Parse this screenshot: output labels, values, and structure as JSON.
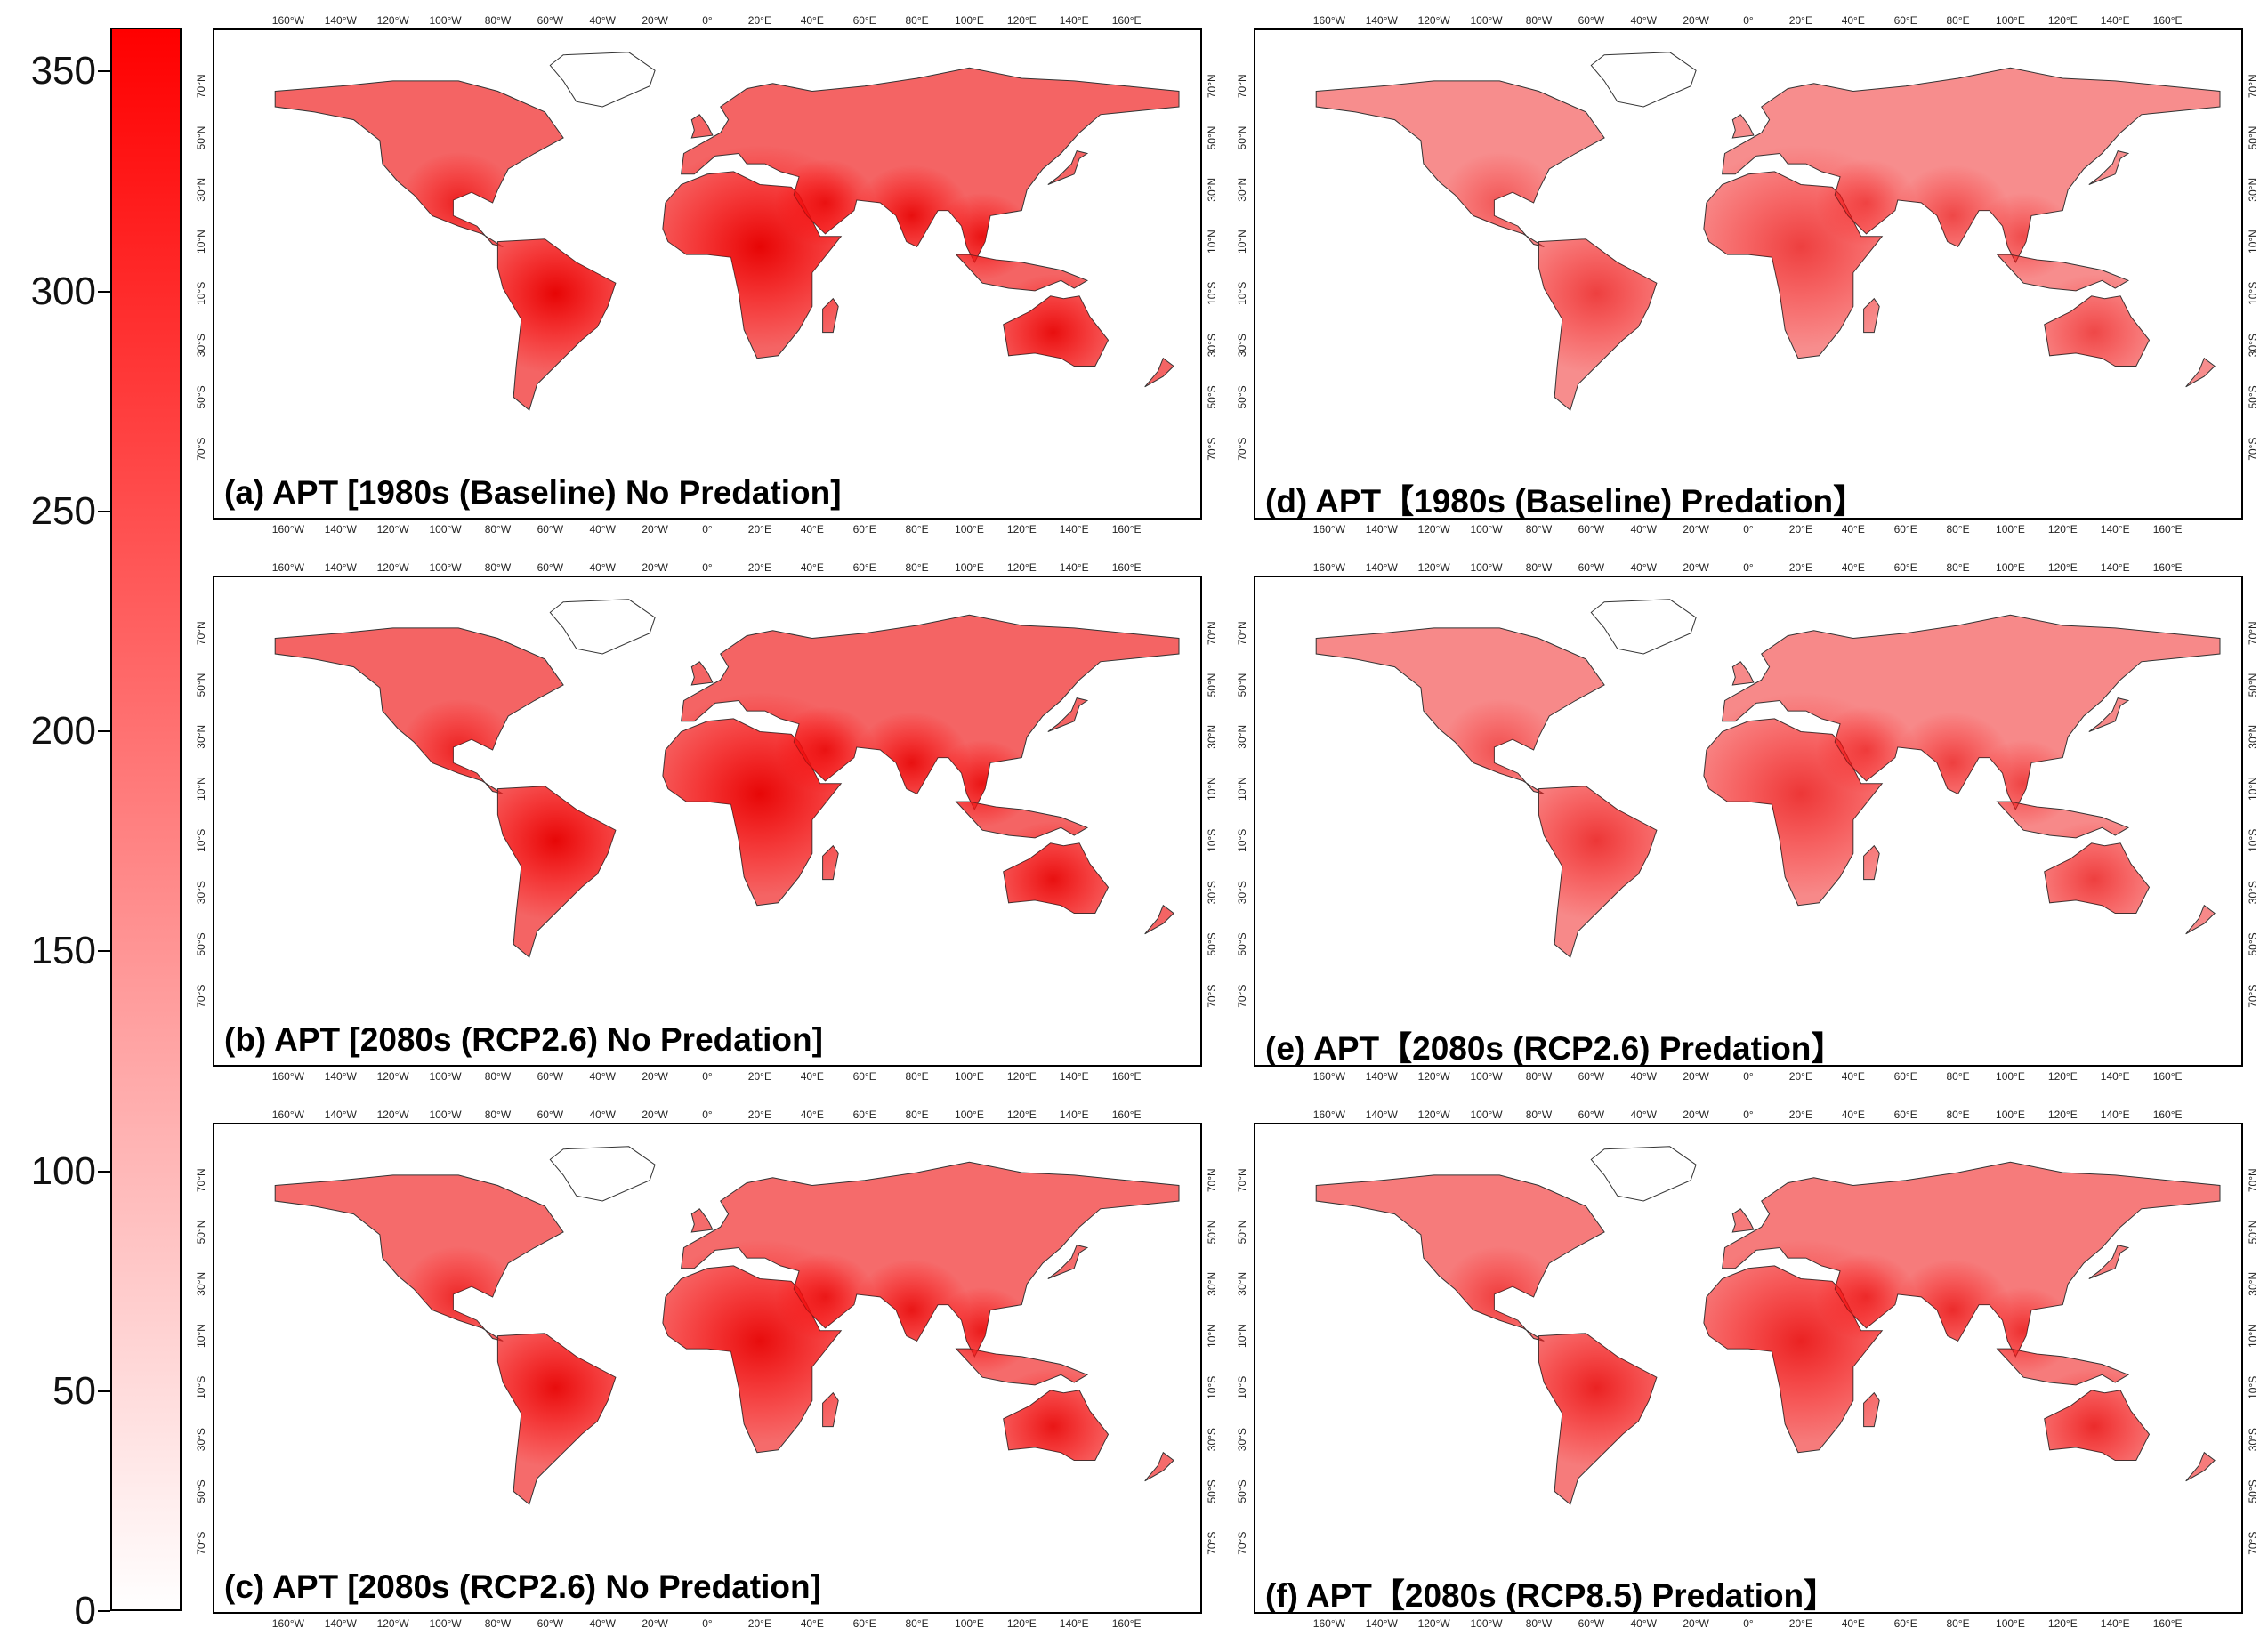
{
  "colorbar": {
    "colors": {
      "min": "#ffffff",
      "max": "#ff0000"
    },
    "ticks": [
      {
        "label": "350",
        "value": 350
      },
      {
        "label": "300",
        "value": 300
      },
      {
        "label": "250",
        "value": 250
      },
      {
        "label": "200",
        "value": 200
      },
      {
        "label": "150",
        "value": 150
      },
      {
        "label": "100",
        "value": 100
      },
      {
        "label": "50",
        "value": 50
      },
      {
        "label": "0",
        "value": 0
      }
    ],
    "range": [
      0,
      360
    ]
  },
  "axes": {
    "lon_labels": [
      "160°W",
      "140°W",
      "120°W",
      "100°W",
      "80°W",
      "60°W",
      "40°W",
      "20°W",
      "0°",
      "20°E",
      "40°E",
      "60°E",
      "80°E",
      "100°E",
      "120°E",
      "140°E",
      "160°E"
    ],
    "lat_labels": [
      "70°N",
      "50°N",
      "30°N",
      "10°N",
      "10°S",
      "30°S",
      "50°S",
      "70°S"
    ]
  },
  "panels": [
    {
      "id": "a",
      "title": "(a) APT [1980s (Baseline) No Predation]",
      "intensity": 0.95
    },
    {
      "id": "d",
      "title": "(d) APT【1980s (Baseline) Predation】",
      "intensity": 0.55
    },
    {
      "id": "b",
      "title": "(b) APT [2080s (RCP2.6) No Predation]",
      "intensity": 0.93
    },
    {
      "id": "e",
      "title": "(e) APT【2080s (RCP2.6) Predation】",
      "intensity": 0.6
    },
    {
      "id": "c",
      "title": "(c) APT [2080s (RCP2.6) No Predation]",
      "intensity": 0.88
    },
    {
      "id": "f",
      "title": "(f) APT【2080s (RCP8.5) Predation】",
      "intensity": 0.72
    }
  ]
}
